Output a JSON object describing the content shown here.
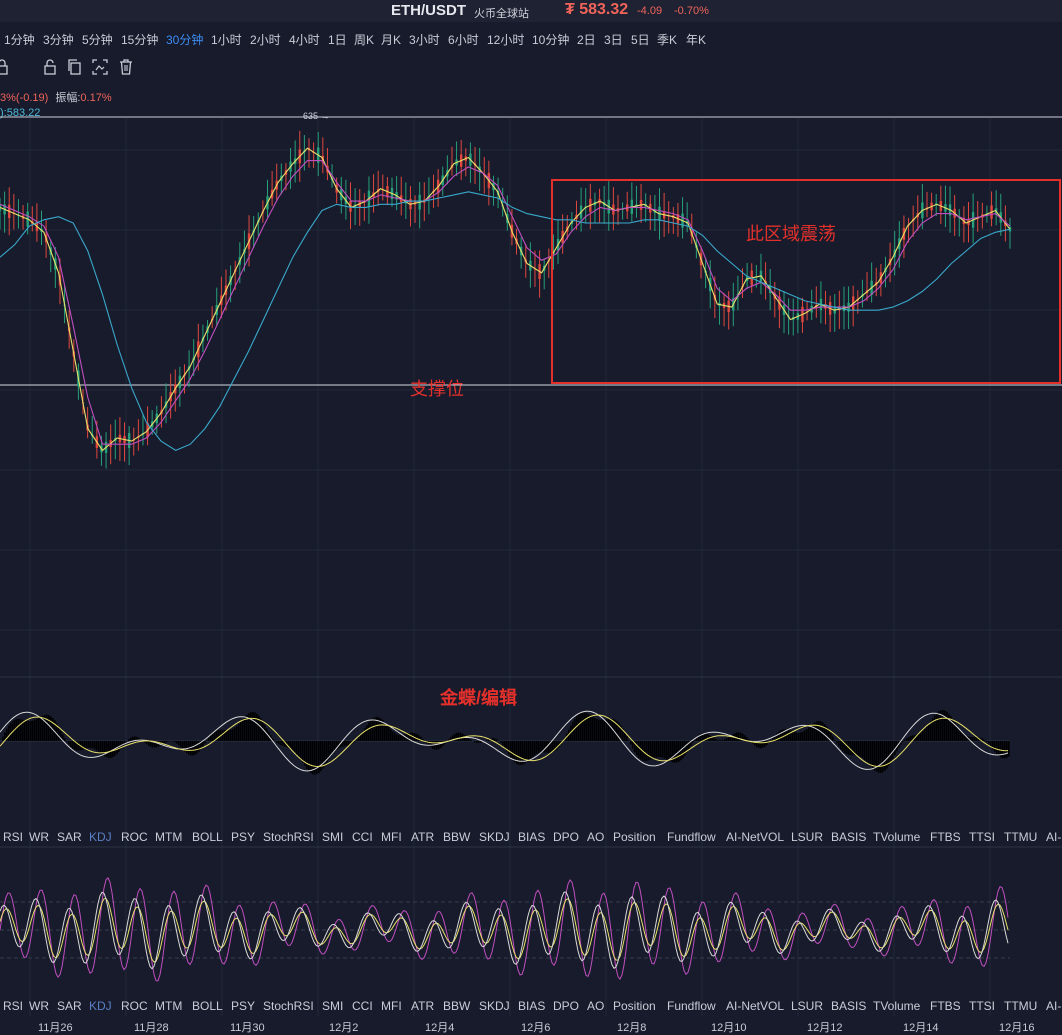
{
  "header": {
    "pair": "ETH/USDT",
    "exchange": "火币全球站",
    "price": "₮ 583.32",
    "change": "-4.09",
    "change_pct": "-0.70%"
  },
  "periods": [
    "1分钟",
    "3分钟",
    "5分钟",
    "15分钟",
    "30分钟",
    "1小时",
    "2小时",
    "4小时",
    "1日",
    "周K",
    "月K",
    "3小时",
    "6小时",
    "12小时",
    "10分钟",
    "2日",
    "3日",
    "5日",
    "季K",
    "年K"
  ],
  "active_period": "30分钟",
  "toolbar": {
    "icons": [
      "lock-icon",
      "copy-icon",
      "screenshot-icon",
      "trash-icon"
    ]
  },
  "info": {
    "line1_prefix": "3%(-0.19)",
    "line1_label": "振幅:",
    "line1_value": "0.17%",
    "line2": "):583.22"
  },
  "indicators": [
    "RSI",
    "WR",
    "SAR",
    "KDJ",
    "ROC",
    "MTM",
    "BOLL",
    "PSY",
    "StochRSI",
    "SMI",
    "CCI",
    "MFI",
    "ATR",
    "BBW",
    "SKDJ",
    "BIAS",
    "DPO",
    "AO",
    "Position",
    "Fundflow",
    "AI-NetVOL",
    "LSUR",
    "BASIS",
    "TVolume",
    "FTBS",
    "TTSI",
    "TTMU",
    "AI-"
  ],
  "indicator_rows": {
    "row1": {
      "active": "KDJ"
    },
    "row2": {
      "active": "KDJ"
    }
  },
  "annotations": {
    "box_label": "此区域震荡",
    "support_label": "支撑位",
    "sub_label": "金蝶/编辑"
  },
  "colors": {
    "up": "#26a17a",
    "down": "#e0483e",
    "ma_yellow": "#e8e06a",
    "ma_magenta": "#c04fc0",
    "ma_cyan": "#3aa8cc",
    "annotation": "#e3302b",
    "active_tab": "#3d8cf5"
  },
  "chart_data": {
    "type": "line",
    "title": "ETH/USDT",
    "price_markers": {
      "high": "635"
    },
    "x_labels": [
      "11月26",
      "11月28",
      "11月30",
      "12月2",
      "12月4",
      "12月6",
      "12月8",
      "12月10",
      "12月12",
      "12月14",
      "12月16"
    ],
    "series": [
      {
        "color": "#e8e06a",
        "values": [
          606,
          604,
          602,
          598,
          585,
          560,
          535,
          528,
          532,
          531,
          534,
          540,
          548,
          555,
          565,
          575,
          585,
          595,
          605,
          614,
          620,
          625,
          622,
          612,
          606,
          608,
          612,
          610,
          607,
          608,
          613,
          620,
          622,
          617,
          611,
          598,
          588,
          585,
          593,
          601,
          606,
          608,
          605,
          606,
          607,
          604,
          603,
          601,
          588,
          575,
          574,
          583,
          584,
          577,
          570,
          572,
          575,
          573,
          574,
          578,
          582,
          590,
          600,
          605,
          607,
          605,
          601,
          603,
          605,
          599
        ]
      },
      {
        "color": "#c04fc0",
        "values": [
          607,
          605,
          603,
          600,
          590,
          568,
          545,
          530,
          530,
          530,
          532,
          537,
          544,
          551,
          560,
          570,
          580,
          590,
          600,
          609,
          616,
          621,
          621,
          614,
          608,
          608,
          610,
          609,
          608,
          608,
          611,
          616,
          619,
          617,
          613,
          603,
          593,
          589,
          591,
          598,
          603,
          606,
          605,
          606,
          606,
          605,
          604,
          602,
          592,
          580,
          576,
          580,
          582,
          578,
          573,
          573,
          574,
          574,
          574,
          576,
          580,
          586,
          595,
          601,
          604,
          604,
          602,
          603,
          604,
          600
        ]
      },
      {
        "color": "#3aa8cc",
        "values": [
          590,
          594,
          600,
          602,
          603,
          601,
          592,
          578,
          562,
          548,
          537,
          531,
          528,
          530,
          535,
          542,
          551,
          560,
          570,
          580,
          590,
          598,
          605,
          607,
          606,
          606,
          607,
          607,
          608,
          608,
          609,
          610,
          611,
          610,
          609,
          606,
          604,
          603,
          602,
          602,
          601,
          601,
          601,
          601,
          602,
          602,
          601,
          600,
          597,
          592,
          588,
          584,
          582,
          580,
          578,
          576,
          575,
          574,
          573,
          573,
          573,
          574,
          576,
          579,
          583,
          588,
          592,
          596,
          598,
          599
        ]
      }
    ],
    "sub_oscillator": {
      "name": "KDJ",
      "histogram_color_up": "#1fb98d",
      "histogram_color_down": "#e0483e"
    },
    "sub_oscillator2": {
      "name": "KDJ",
      "line_colors": [
        "#c04fc0",
        "#e8e06a",
        "#d9d9d9"
      ]
    }
  }
}
